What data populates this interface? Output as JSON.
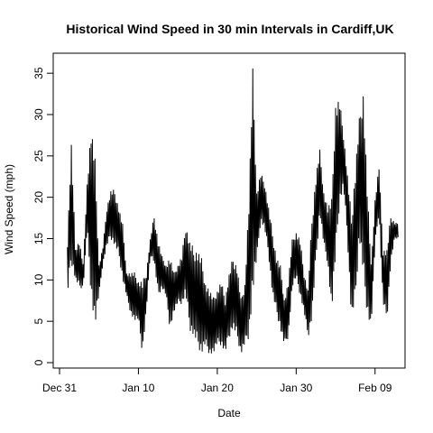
{
  "chart_data": {
    "type": "line",
    "title": "Historical Wind Speed in 30 min Intervals in Cardiff,UK",
    "xlabel": "Date",
    "ylabel": "Wind Speed (mph)",
    "x_range": [
      "2013-12-31",
      "2014-02-12"
    ],
    "ylim": [
      0,
      36
    ],
    "x_ticks": [
      {
        "date": "2013-12-31",
        "label": "Dec 31"
      },
      {
        "date": "2014-01-10",
        "label": "Jan 10"
      },
      {
        "date": "2014-01-20",
        "label": "Jan 20"
      },
      {
        "date": "2014-01-30",
        "label": "Jan 30"
      },
      {
        "date": "2014-02-09",
        "label": "Feb 09"
      }
    ],
    "y_ticks": [
      0,
      5,
      10,
      15,
      20,
      25,
      30,
      35
    ],
    "grid": false,
    "color": "#000000",
    "series": [
      {
        "x": [
          "2014-01-01 00:00",
          "2014-01-01 12:00",
          "2014-01-02 00:00",
          "2014-01-02 12:00",
          "2014-01-03 00:00",
          "2014-01-03 12:00",
          "2014-01-04 00:00",
          "2014-01-04 12:00",
          "2014-01-05 00:00",
          "2014-01-05 12:00",
          "2014-01-06 00:00",
          "2014-01-06 12:00",
          "2014-01-07 00:00",
          "2014-01-07 12:00",
          "2014-01-08 00:00",
          "2014-01-08 12:00",
          "2014-01-09 00:00",
          "2014-01-09 12:00",
          "2014-01-10 00:00",
          "2014-01-10 12:00",
          "2014-01-11 00:00",
          "2014-01-11 12:00",
          "2014-01-12 00:00",
          "2014-01-12 12:00",
          "2014-01-13 00:00",
          "2014-01-13 12:00",
          "2014-01-14 00:00",
          "2014-01-14 12:00",
          "2014-01-15 00:00",
          "2014-01-15 12:00",
          "2014-01-16 00:00",
          "2014-01-16 12:00",
          "2014-01-17 00:00",
          "2014-01-17 12:00",
          "2014-01-18 00:00",
          "2014-01-18 12:00",
          "2014-01-19 00:00",
          "2014-01-19 12:00",
          "2014-01-20 00:00",
          "2014-01-20 12:00",
          "2014-01-21 00:00",
          "2014-01-21 12:00",
          "2014-01-22 00:00",
          "2014-01-22 12:00",
          "2014-01-23 00:00",
          "2014-01-23 12:00",
          "2014-01-24 00:00",
          "2014-01-24 12:00",
          "2014-01-25 00:00",
          "2014-01-25 12:00",
          "2014-01-26 00:00",
          "2014-01-26 12:00",
          "2014-01-27 00:00",
          "2014-01-27 12:00",
          "2014-01-28 00:00",
          "2014-01-28 12:00",
          "2014-01-29 00:00",
          "2014-01-29 12:00",
          "2014-01-30 00:00",
          "2014-01-30 12:00",
          "2014-01-31 00:00",
          "2014-01-31 12:00",
          "2014-02-01 00:00",
          "2014-02-01 12:00",
          "2014-02-02 00:00",
          "2014-02-02 12:00",
          "2014-02-03 00:00",
          "2014-02-03 12:00",
          "2014-02-04 00:00",
          "2014-02-04 12:00",
          "2014-02-05 00:00",
          "2014-02-05 12:00",
          "2014-02-06 00:00",
          "2014-02-06 12:00",
          "2014-02-07 00:00",
          "2014-02-07 12:00",
          "2014-02-08 00:00",
          "2014-02-08 12:00",
          "2014-02-09 00:00",
          "2014-02-09 12:00",
          "2014-02-10 00:00",
          "2014-02-10 12:00",
          "2014-02-11 00:00",
          "2014-02-11 12:00"
        ],
        "low": [
          8,
          12,
          10,
          9,
          9,
          16,
          8,
          4,
          8,
          12,
          14,
          15,
          14,
          13,
          10,
          8,
          6,
          5,
          5,
          1,
          6,
          13,
          12,
          8,
          9,
          8,
          4,
          6,
          7,
          7,
          8,
          4,
          3,
          2,
          1,
          2,
          1,
          1,
          2,
          2,
          1,
          3,
          4,
          3,
          1,
          2,
          3,
          8,
          12,
          17,
          16,
          13,
          8,
          6,
          4,
          2,
          3,
          9,
          10,
          8,
          6,
          3,
          5,
          12,
          18,
          14,
          12,
          6,
          12,
          19,
          21,
          15,
          5,
          7,
          15,
          10,
          6,
          4,
          14,
          18,
          7,
          5,
          12,
          15
        ],
        "high": [
          15,
          27,
          14,
          15,
          12,
          22,
          29,
          25,
          12,
          14,
          19,
          21,
          21,
          19,
          17,
          11,
          11,
          11,
          10,
          10,
          11,
          15,
          18,
          15,
          13,
          12,
          13,
          11,
          12,
          13,
          17,
          15,
          14,
          14,
          13,
          10,
          9,
          8,
          9,
          10,
          8,
          11,
          13,
          12,
          8,
          10,
          20,
          36,
          21,
          23,
          22,
          19,
          16,
          13,
          12,
          8,
          10,
          15,
          16,
          15,
          11,
          9,
          18,
          23,
          26,
          21,
          19,
          20,
          32,
          32,
          28,
          23,
          18,
          24,
          30,
          34,
          22,
          12,
          20,
          24,
          14,
          14,
          18,
          17
        ]
      }
    ]
  }
}
